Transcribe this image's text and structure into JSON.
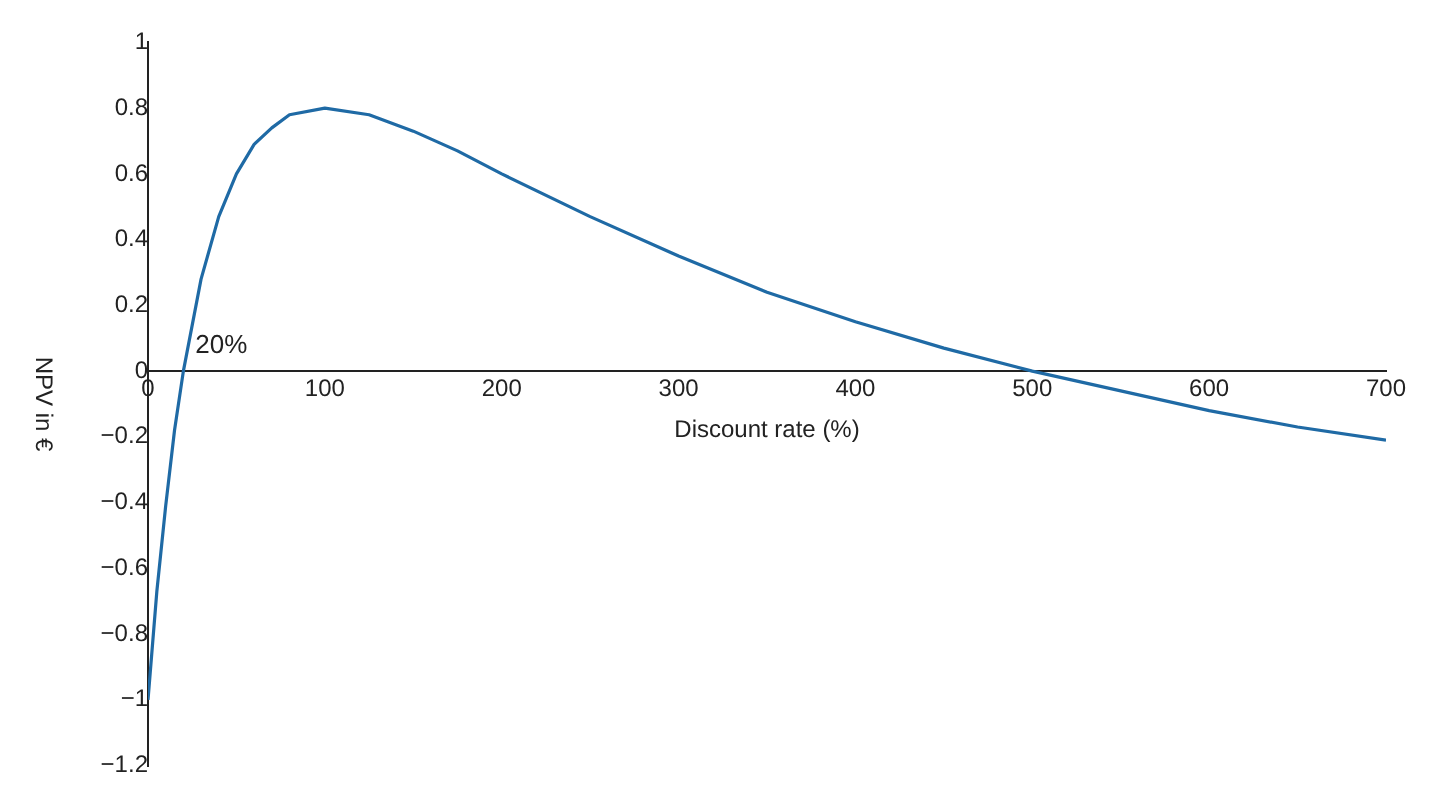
{
  "chart_data": {
    "type": "line",
    "xlabel": "Discount rate (%)",
    "ylabel": "NPV in €",
    "x": [
      0,
      5,
      10,
      15,
      20,
      30,
      40,
      50,
      60,
      70,
      80,
      100,
      125,
      150,
      175,
      200,
      250,
      300,
      350,
      400,
      450,
      500,
      550,
      600,
      650,
      700
    ],
    "series": [
      {
        "color": "#1f6aa5",
        "values": [
          -1,
          -0.67,
          -0.41,
          -0.18,
          0,
          0.28,
          0.47,
          0.6,
          0.69,
          0.74,
          0.78,
          0.8,
          0.78,
          0.73,
          0.67,
          0.6,
          0.47,
          0.35,
          0.24,
          0.15,
          0.07,
          0,
          -0.06,
          -0.12,
          -0.17,
          -0.21
        ]
      }
    ],
    "xlim": [
      0,
      700
    ],
    "xticks": [
      0,
      100,
      200,
      300,
      400,
      500,
      600,
      700
    ],
    "ylim": [
      -1.2,
      1
    ],
    "yticks": [
      {
        "value": -1.2,
        "label": "−1.2"
      },
      {
        "value": -1,
        "label": "−1"
      },
      {
        "value": -0.8,
        "label": "−0.8"
      },
      {
        "value": -0.6,
        "label": "−0.6"
      },
      {
        "value": -0.4,
        "label": "−0.4"
      },
      {
        "value": -0.2,
        "label": "−0.2"
      },
      0,
      0.2,
      0.4,
      0.6,
      0.8,
      1
    ],
    "annotations": [
      {
        "text": "20%",
        "x": 20,
        "y": 0
      }
    ],
    "grid": false,
    "legend": false,
    "marker": "none",
    "line_style": "solid"
  }
}
